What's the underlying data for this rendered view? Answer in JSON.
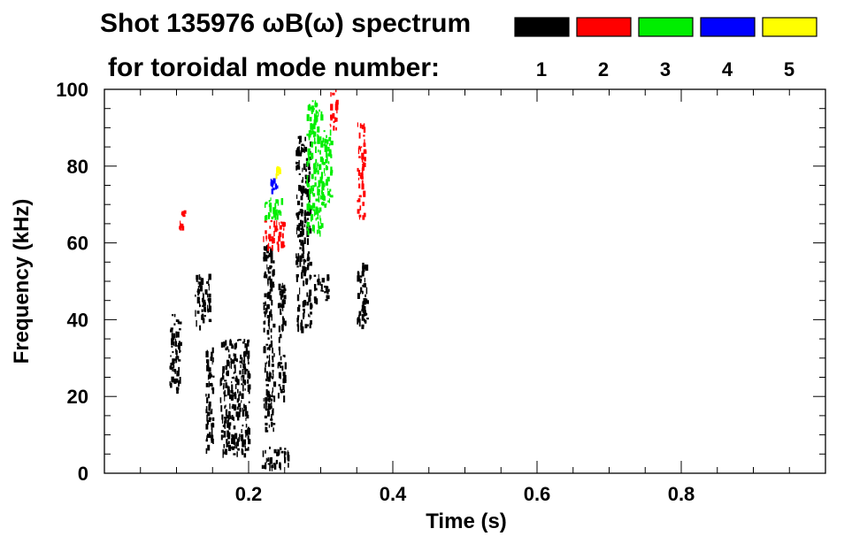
{
  "chart_data": {
    "type": "heatmap",
    "title_line1": "Shot 135976 ωB(ω) spectrum",
    "title_line2": "for toroidal mode number:",
    "xlabel": "Time (s)",
    "ylabel": "Frequency (kHz)",
    "xlim": [
      0.0,
      1.0
    ],
    "ylim": [
      0,
      100
    ],
    "x_ticks": [
      {
        "value": 0.2,
        "label": "0.2"
      },
      {
        "value": 0.4,
        "label": "0.4"
      },
      {
        "value": 0.6,
        "label": "0.6"
      },
      {
        "value": 0.8,
        "label": "0.8"
      }
    ],
    "y_ticks": [
      {
        "value": 0,
        "label": "0"
      },
      {
        "value": 20,
        "label": "20"
      },
      {
        "value": 40,
        "label": "40"
      },
      {
        "value": 60,
        "label": "60"
      },
      {
        "value": 80,
        "label": "80"
      },
      {
        "value": 100,
        "label": "100"
      }
    ],
    "legend_position": "top-right",
    "legend": [
      {
        "label": "1",
        "color": "#000000"
      },
      {
        "label": "2",
        "color": "#ff0000"
      },
      {
        "label": "3",
        "color": "#00ee00"
      },
      {
        "label": "4",
        "color": "#0000ff"
      },
      {
        "label": "5",
        "color": "#ffff00"
      }
    ],
    "regions": [
      {
        "mode": 1,
        "t": [
          0.09,
          0.105
        ],
        "f": [
          22,
          42
        ]
      },
      {
        "mode": 1,
        "t": [
          0.125,
          0.145
        ],
        "f": [
          38,
          52
        ]
      },
      {
        "mode": 1,
        "t": [
          0.14,
          0.15
        ],
        "f": [
          5,
          35
        ]
      },
      {
        "mode": 1,
        "t": [
          0.16,
          0.2
        ],
        "f": [
          5,
          35
        ]
      },
      {
        "mode": 1,
        "t": [
          0.215,
          0.255
        ],
        "f": [
          2,
          7
        ]
      },
      {
        "mode": 1,
        "t": [
          0.22,
          0.235
        ],
        "f": [
          10,
          60
        ]
      },
      {
        "mode": 1,
        "t": [
          0.24,
          0.25
        ],
        "f": [
          20,
          50
        ]
      },
      {
        "mode": 1,
        "t": [
          0.265,
          0.285
        ],
        "f": [
          38,
          88
        ]
      },
      {
        "mode": 1,
        "t": [
          0.29,
          0.31
        ],
        "f": [
          45,
          52
        ]
      },
      {
        "mode": 1,
        "t": [
          0.35,
          0.365
        ],
        "f": [
          38,
          55
        ]
      },
      {
        "mode": 2,
        "t": [
          0.1,
          0.11
        ],
        "f": [
          64,
          69
        ]
      },
      {
        "mode": 2,
        "t": [
          0.22,
          0.25
        ],
        "f": [
          59,
          66
        ]
      },
      {
        "mode": 2,
        "t": [
          0.312,
          0.322
        ],
        "f": [
          90,
          100
        ]
      },
      {
        "mode": 2,
        "t": [
          0.35,
          0.36
        ],
        "f": [
          67,
          92
        ]
      },
      {
        "mode": 3,
        "t": [
          0.22,
          0.245
        ],
        "f": [
          66,
          72
        ]
      },
      {
        "mode": 3,
        "t": [
          0.28,
          0.3
        ],
        "f": [
          63,
          98
        ]
      },
      {
        "mode": 3,
        "t": [
          0.3,
          0.315
        ],
        "f": [
          70,
          90
        ]
      },
      {
        "mode": 4,
        "t": [
          0.23,
          0.238
        ],
        "f": [
          74,
          77
        ]
      },
      {
        "mode": 5,
        "t": [
          0.237,
          0.242
        ],
        "f": [
          78,
          80
        ]
      }
    ]
  }
}
